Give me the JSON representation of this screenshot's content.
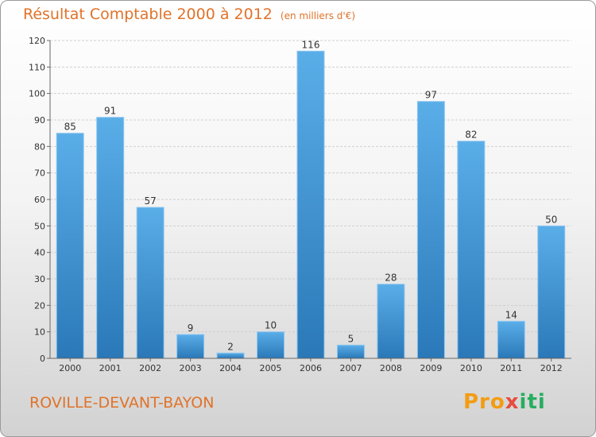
{
  "title": "Résultat Comptable 2000 à 2012",
  "subtitle": "(en milliers d'€)",
  "location": "ROVILLE-DEVANT-BAYON",
  "logo": {
    "p1": "Pro",
    "p2": "x",
    "p3": "iti"
  },
  "chart_data": {
    "type": "bar",
    "categories": [
      "2000",
      "2001",
      "2002",
      "2003",
      "2004",
      "2005",
      "2006",
      "2007",
      "2008",
      "2009",
      "2010",
      "2011",
      "2012"
    ],
    "values": [
      85,
      91,
      57,
      9,
      2,
      10,
      116,
      5,
      28,
      97,
      82,
      14,
      50
    ],
    "ylim": [
      0,
      120
    ],
    "yticks": [
      0,
      10,
      20,
      30,
      40,
      50,
      60,
      70,
      80,
      90,
      100,
      110,
      120
    ],
    "grid": true,
    "bar_color": "#3d8fd1"
  }
}
